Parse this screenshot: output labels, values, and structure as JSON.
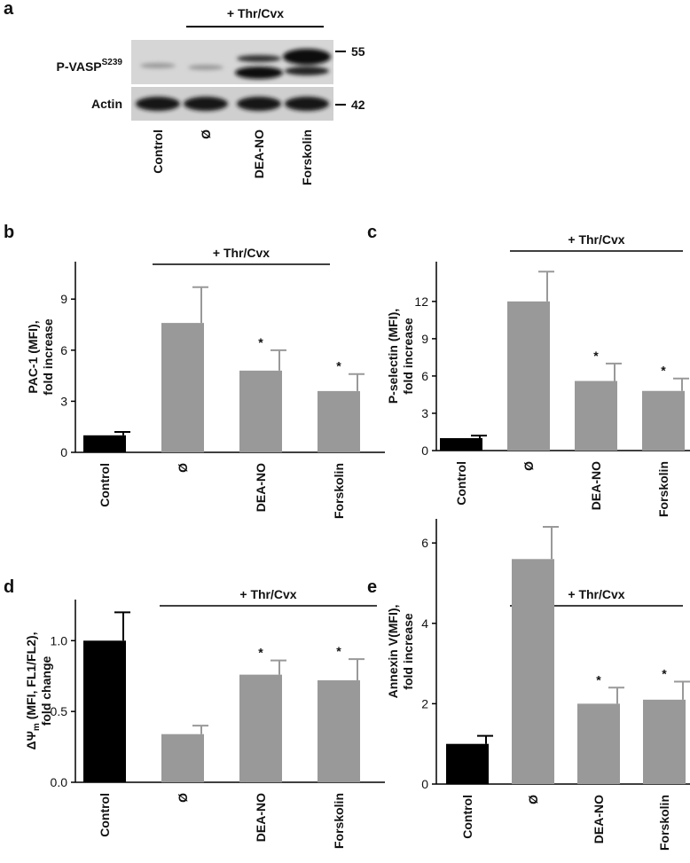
{
  "blot": {
    "panel": "a",
    "bracket_label": "+ Thr/Cvx",
    "row1_label": "P-VASP",
    "row1_superscript": "S239",
    "row2_label": "Actin",
    "marker1": "55",
    "marker2": "42",
    "lanes": [
      "Control",
      "Ø",
      "DEA-NO",
      "Forskolin"
    ]
  },
  "chart_data": [
    {
      "type": "bar",
      "panel": "b",
      "bracket_label": "+ Thr/Cvx",
      "ylabel": {
        "main": "PAC-1 (MFI),",
        "line2": "fold increase"
      },
      "categories": [
        "Control",
        "Ø",
        "DEA-NO",
        "Forskolin"
      ],
      "values": [
        1.0,
        7.6,
        4.8,
        3.6
      ],
      "errors": [
        0.2,
        2.1,
        1.2,
        1.0
      ],
      "colors": [
        "#000000",
        "#999999",
        "#999999",
        "#999999"
      ],
      "significant": [
        false,
        false,
        true,
        true
      ],
      "marker": "*",
      "ylim": [
        0,
        11.2
      ],
      "yticks": [
        0,
        3,
        6,
        9
      ]
    },
    {
      "type": "bar",
      "panel": "c",
      "bracket_label": "+ Thr/Cvx",
      "ylabel": {
        "main": "P-selectin (MFI),",
        "line2": "fold increase"
      },
      "categories": [
        "Control",
        "Ø",
        "DEA-NO",
        "Forskolin"
      ],
      "values": [
        1.0,
        12.0,
        5.6,
        4.8
      ],
      "errors": [
        0.2,
        2.4,
        1.4,
        1.0
      ],
      "colors": [
        "#000000",
        "#999999",
        "#999999",
        "#999999"
      ],
      "significant": [
        false,
        false,
        true,
        true
      ],
      "marker": "*",
      "ylim": [
        0,
        15.2
      ],
      "yticks": [
        0,
        3,
        6,
        9,
        12
      ]
    },
    {
      "type": "bar",
      "panel": "d",
      "bracket_label": "+ Thr/Cvx",
      "ylabel": {
        "main": "ΔΨ",
        "subscript": "m",
        "rest": " (MFI, FL1/FL2),",
        "line2": "fold change"
      },
      "categories": [
        "Control",
        "Ø",
        "DEA-NO",
        "Forskolin"
      ],
      "values": [
        1.0,
        0.34,
        0.76,
        0.72
      ],
      "errors": [
        0.2,
        0.06,
        0.1,
        0.15
      ],
      "colors": [
        "#000000",
        "#999999",
        "#999999",
        "#999999"
      ],
      "significant": [
        false,
        false,
        true,
        true
      ],
      "marker": "*",
      "ylim": [
        0,
        1.29
      ],
      "yticks": [
        {
          "value": 0,
          "label": "0.0"
        },
        {
          "value": 0.5,
          "label": "0.5"
        },
        {
          "value": 1,
          "label": "1.0"
        }
      ]
    },
    {
      "type": "bar",
      "panel": "e",
      "bracket_label": "+ Thr/Cvx",
      "ylabel": {
        "main": "Annexin V(MFI),",
        "line2": "fold increase"
      },
      "categories": [
        "Control",
        "Ø",
        "DEA-NO",
        "Forskolin"
      ],
      "values": [
        1.0,
        5.6,
        2.0,
        2.1
      ],
      "errors": [
        0.2,
        0.8,
        0.4,
        0.45
      ],
      "colors": [
        "#000000",
        "#999999",
        "#999999",
        "#999999"
      ],
      "significant": [
        false,
        false,
        true,
        true
      ],
      "marker": "*",
      "ylim": [
        0,
        6.6
      ],
      "yticks": [
        0,
        2,
        4,
        6
      ]
    }
  ]
}
